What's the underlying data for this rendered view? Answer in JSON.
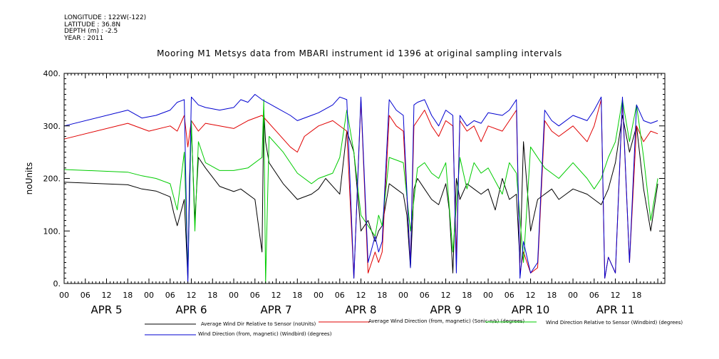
{
  "header": {
    "longitude": "LONGITUDE : 122W(-122)",
    "latitude": "LATITUDE : 36.8N",
    "depth": "DEPTH (m) : -2.5",
    "year": "YEAR : 2011"
  },
  "chart_data": {
    "type": "line",
    "title": "Mooring M1 Metsys data from MBARI instrument id 1396 at original sampling intervals",
    "ylabel": "noUnits",
    "xlabel": "",
    "ylim": [
      0,
      400
    ],
    "xlim": [
      0,
      170
    ],
    "x_unit": "hours after APR 5 00",
    "yticks": [
      0,
      100,
      200,
      300,
      400
    ],
    "ytick_labels": [
      "0.",
      "100.",
      "200.",
      "300.",
      "400."
    ],
    "hour_ticks": [
      {
        "x": 0,
        "label": "00"
      },
      {
        "x": 6,
        "label": "06"
      },
      {
        "x": 12,
        "label": "12"
      },
      {
        "x": 18,
        "label": "18"
      },
      {
        "x": 24,
        "label": "00"
      },
      {
        "x": 30,
        "label": "06"
      },
      {
        "x": 36,
        "label": "12"
      },
      {
        "x": 42,
        "label": "18"
      },
      {
        "x": 48,
        "label": "00"
      },
      {
        "x": 54,
        "label": "06"
      },
      {
        "x": 60,
        "label": "12"
      },
      {
        "x": 66,
        "label": "18"
      },
      {
        "x": 72,
        "label": "00"
      },
      {
        "x": 78,
        "label": "06"
      },
      {
        "x": 84,
        "label": "12"
      },
      {
        "x": 90,
        "label": "18"
      },
      {
        "x": 96,
        "label": "00"
      },
      {
        "x": 102,
        "label": "06"
      },
      {
        "x": 108,
        "label": "12"
      },
      {
        "x": 114,
        "label": "18"
      },
      {
        "x": 120,
        "label": "00"
      },
      {
        "x": 126,
        "label": "06"
      },
      {
        "x": 132,
        "label": "12"
      },
      {
        "x": 138,
        "label": "18"
      },
      {
        "x": 144,
        "label": "00"
      },
      {
        "x": 150,
        "label": "06"
      },
      {
        "x": 156,
        "label": "12"
      },
      {
        "x": 162,
        "label": "18"
      }
    ],
    "day_labels": [
      {
        "x": 12,
        "label": "APR  5"
      },
      {
        "x": 36,
        "label": "APR  6"
      },
      {
        "x": 60,
        "label": "APR  7"
      },
      {
        "x": 84,
        "label": "APR  8"
      },
      {
        "x": 108,
        "label": "APR  9"
      },
      {
        "x": 132,
        "label": "APR 10"
      },
      {
        "x": 156,
        "label": "APR 11"
      }
    ],
    "grid": false,
    "legend_placement": "bottom",
    "series": [
      {
        "name": "Average Wind Dir Relative to Sensor (noUnits)",
        "color": "#000000",
        "x": [
          0,
          18,
          22,
          26,
          30,
          31,
          32,
          34,
          35,
          35.5,
          36,
          37,
          38,
          40,
          44,
          48,
          50,
          54,
          56,
          56.5,
          57,
          58,
          62,
          66,
          70,
          72,
          74,
          78,
          80,
          82,
          84,
          86,
          88,
          89,
          90,
          92,
          94,
          96,
          97,
          98,
          99,
          100,
          102,
          104,
          106,
          108,
          109,
          110,
          111,
          112,
          114,
          116,
          118,
          120,
          122,
          124,
          126,
          128,
          129,
          130,
          132,
          134,
          138,
          140,
          142,
          144,
          148,
          150,
          152,
          154,
          156,
          158,
          160,
          162,
          164,
          166,
          168
        ],
        "values": [
          193,
          188,
          180,
          176,
          165,
          135,
          110,
          160,
          10,
          200,
          300,
          120,
          240,
          220,
          185,
          175,
          180,
          160,
          60,
          330,
          270,
          230,
          190,
          160,
          170,
          180,
          200,
          170,
          290,
          250,
          100,
          120,
          80,
          100,
          110,
          190,
          180,
          170,
          130,
          30,
          180,
          200,
          180,
          160,
          150,
          190,
          140,
          20,
          200,
          160,
          190,
          180,
          170,
          180,
          140,
          200,
          160,
          170,
          40,
          270,
          100,
          160,
          180,
          160,
          170,
          180,
          170,
          160,
          150,
          180,
          230,
          320,
          250,
          300,
          180,
          100,
          190
        ]
      },
      {
        "name": "Average Wind Direction (from, magnetic) (Sonic-n/s) (degrees)",
        "color": "#e00000",
        "x": [
          0,
          18,
          24,
          30,
          32,
          34,
          35,
          36,
          38,
          40,
          44,
          48,
          52,
          56,
          60,
          64,
          66,
          68,
          72,
          76,
          80,
          82,
          84,
          86,
          88,
          89,
          90,
          92,
          94,
          96,
          98,
          99,
          100,
          102,
          104,
          106,
          108,
          110,
          111,
          112,
          114,
          116,
          118,
          120,
          124,
          126,
          128,
          129,
          130,
          132,
          134,
          136,
          138,
          140,
          144,
          148,
          150,
          152,
          153,
          154,
          156,
          158,
          160,
          162,
          164,
          166,
          168
        ],
        "values": [
          275,
          305,
          290,
          300,
          290,
          320,
          260,
          310,
          290,
          305,
          300,
          295,
          310,
          320,
          290,
          260,
          250,
          280,
          300,
          310,
          290,
          10,
          350,
          20,
          60,
          40,
          60,
          320,
          300,
          290,
          40,
          300,
          310,
          330,
          300,
          280,
          310,
          300,
          50,
          310,
          290,
          300,
          270,
          300,
          290,
          310,
          330,
          20,
          60,
          20,
          30,
          310,
          290,
          280,
          300,
          270,
          300,
          350,
          10,
          50,
          20,
          350,
          40,
          300,
          270,
          290,
          285
        ]
      },
      {
        "name": "Wind Direction Relative to Sensor (Windbird) (degrees)",
        "color": "#00cc00",
        "x": [
          0,
          18,
          22,
          26,
          30,
          31,
          32,
          34,
          35,
          36,
          37,
          38,
          40,
          44,
          48,
          52,
          56,
          56.5,
          57,
          58,
          62,
          66,
          70,
          72,
          76,
          78,
          80,
          82,
          84,
          86,
          88,
          89,
          90,
          92,
          96,
          98,
          100,
          102,
          104,
          106,
          108,
          110,
          112,
          114,
          116,
          118,
          120,
          124,
          126,
          128,
          130,
          132,
          136,
          138,
          140,
          144,
          148,
          150,
          152,
          154,
          156,
          158,
          160,
          162,
          164,
          166,
          168
        ],
        "values": [
          217,
          212,
          205,
          200,
          190,
          165,
          140,
          250,
          20,
          310,
          100,
          270,
          230,
          215,
          215,
          220,
          240,
          350,
          0,
          280,
          250,
          210,
          190,
          200,
          210,
          240,
          330,
          250,
          130,
          110,
          90,
          130,
          110,
          240,
          230,
          100,
          220,
          230,
          210,
          200,
          230,
          60,
          240,
          180,
          230,
          210,
          220,
          170,
          230,
          210,
          40,
          260,
          220,
          210,
          200,
          230,
          200,
          180,
          200,
          240,
          270,
          350,
          270,
          340,
          240,
          120,
          200
        ]
      },
      {
        "name": "Wind Direction (from, magnetic) (Windbird) (degrees)",
        "color": "#0000d0",
        "x": [
          0,
          18,
          22,
          26,
          30,
          32,
          34,
          35,
          36,
          38,
          40,
          44,
          48,
          50,
          52,
          54,
          56,
          60,
          64,
          66,
          70,
          72,
          76,
          78,
          80,
          82,
          84,
          86,
          88,
          89,
          90,
          92,
          94,
          96,
          98,
          99,
          100,
          102,
          104,
          106,
          108,
          110,
          111,
          112,
          114,
          116,
          118,
          120,
          124,
          126,
          128,
          129,
          130,
          132,
          134,
          136,
          138,
          140,
          144,
          148,
          150,
          152,
          153,
          154,
          156,
          158,
          160,
          162,
          164,
          166,
          168
        ],
        "values": [
          300,
          330,
          315,
          320,
          330,
          345,
          350,
          0,
          355,
          340,
          335,
          330,
          335,
          350,
          345,
          360,
          350,
          335,
          320,
          310,
          320,
          325,
          340,
          355,
          350,
          10,
          355,
          40,
          90,
          60,
          80,
          350,
          330,
          320,
          30,
          340,
          345,
          350,
          320,
          300,
          330,
          320,
          20,
          320,
          300,
          310,
          305,
          325,
          320,
          330,
          350,
          10,
          80,
          20,
          40,
          330,
          310,
          300,
          320,
          310,
          330,
          355,
          10,
          50,
          20,
          355,
          40,
          340,
          310,
          305,
          310
        ]
      }
    ]
  }
}
